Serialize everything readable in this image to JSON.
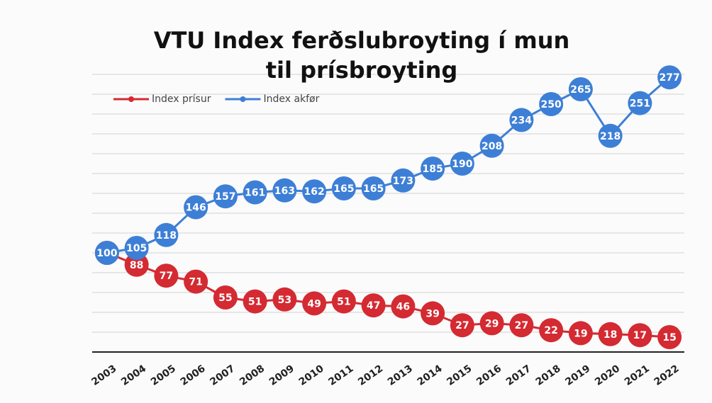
{
  "chart_data": {
    "type": "line",
    "title": "VTU Index ferðslubroyting í mun til prísbroyting",
    "categories": [
      "2003",
      "2004",
      "2005",
      "2006",
      "2007",
      "2008",
      "2009",
      "2010",
      "2011",
      "2012",
      "2013",
      "2014",
      "2015",
      "2016",
      "2017",
      "2018",
      "2019",
      "2020",
      "2021",
      "2022"
    ],
    "series": [
      {
        "name": "Index prísur",
        "color": "#d42a32",
        "values": [
          100,
          88,
          77,
          71,
          55,
          51,
          53,
          49,
          51,
          47,
          46,
          39,
          27,
          29,
          27,
          22,
          19,
          18,
          17,
          15
        ]
      },
      {
        "name": "Index akfør",
        "color": "#3d7fd6",
        "values": [
          100,
          105,
          118,
          146,
          157,
          161,
          163,
          162,
          165,
          165,
          173,
          185,
          190,
          208,
          234,
          250,
          265,
          218,
          251,
          277
        ]
      }
    ],
    "ylim": [
      0,
      300
    ],
    "yticks": [
      0,
      20,
      40,
      60,
      80,
      100,
      120,
      140,
      160,
      180,
      200,
      220,
      240,
      260,
      280
    ],
    "grid": true,
    "legend": "top-left",
    "data_labels": true
  }
}
